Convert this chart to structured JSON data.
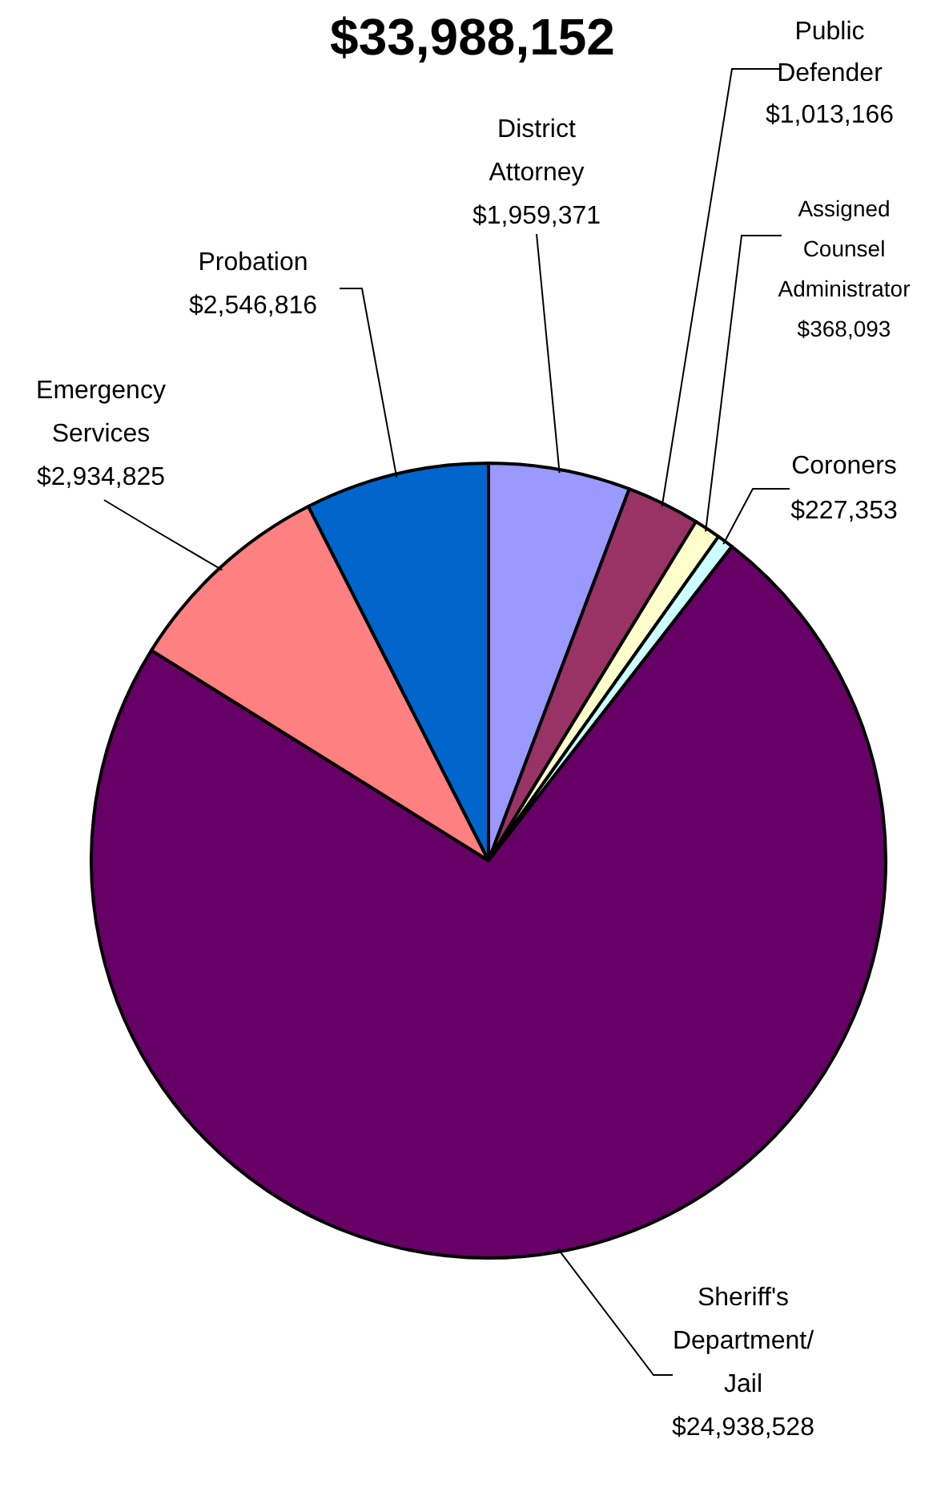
{
  "chart_data": {
    "type": "pie",
    "title": "$33,988,152",
    "categories": [
      "District Attorney",
      "Public Defender",
      "Assigned Counsel Administrator",
      "Coroners",
      "Sheriff's Department/ Jail",
      "Emergency Services",
      "Probation"
    ],
    "values": [
      1959371,
      1013166,
      368093,
      227353,
      24938528,
      2934825,
      2546816
    ],
    "value_labels": [
      "$1,959,371",
      "$1,013,166",
      "$368,093",
      "$227,353",
      "$24,938,528",
      "$2,934,825",
      "$2,546,816"
    ],
    "colors": [
      "#9999ff",
      "#993366",
      "#ffffcc",
      "#ccffff",
      "#660066",
      "#ff8080",
      "#0066cc"
    ]
  }
}
